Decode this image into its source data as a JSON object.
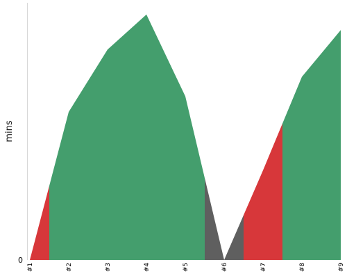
{
  "chart_data": {
    "type": "area",
    "ylabel": "mins",
    "y_ticks": [
      "0"
    ],
    "categories": [
      "#1",
      "#2",
      "#3",
      "#4",
      "#5",
      "#6",
      "#7",
      "#8",
      "#9"
    ],
    "x": [
      1,
      2,
      3,
      4,
      5,
      6,
      7,
      8,
      9
    ],
    "values": [
      0,
      3.8,
      5.4,
      6.3,
      4.2,
      0,
      2.3,
      4.7,
      5.9
    ],
    "ylim": [
      0,
      6.6
    ],
    "grid": false,
    "segments": [
      {
        "from": 1,
        "to": 1.5,
        "color": "#d7373a"
      },
      {
        "from": 1.5,
        "to": 5.5,
        "color": "#449e6d"
      },
      {
        "from": 5.5,
        "to": 6.5,
        "color": "#5f5f5f"
      },
      {
        "from": 6.5,
        "to": 7.5,
        "color": "#d7373a"
      },
      {
        "from": 7.5,
        "to": 9,
        "color": "#449e6d"
      }
    ]
  }
}
